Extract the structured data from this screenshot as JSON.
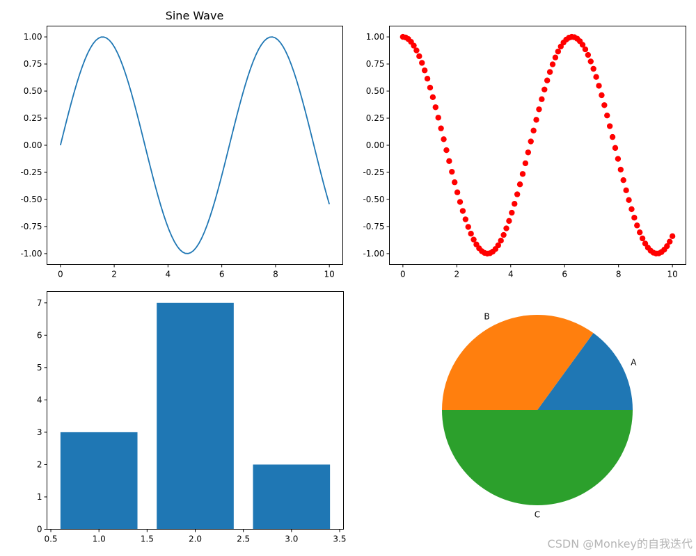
{
  "watermark": "CSDN @Monkey的自我迭代",
  "chart_data": [
    {
      "type": "line",
      "title": "Sine Wave",
      "function": "sin(x)",
      "x_range": [
        0,
        10
      ],
      "num_points": 100,
      "xlim": [
        -0.5,
        10.5
      ],
      "ylim": [
        -1.1,
        1.1
      ],
      "xticks": [
        "0",
        "2",
        "4",
        "6",
        "8",
        "10"
      ],
      "yticks": [
        "-1.00",
        "-0.75",
        "-0.50",
        "-0.25",
        "0.00",
        "0.25",
        "0.50",
        "0.75",
        "1.00"
      ],
      "color": "#1f77b4",
      "grid": false
    },
    {
      "type": "scatter",
      "title": "",
      "function": "cos(x)",
      "x_range": [
        0,
        10
      ],
      "num_points": 100,
      "xlim": [
        -0.5,
        10.5
      ],
      "ylim": [
        -1.1,
        1.1
      ],
      "xticks": [
        "0",
        "2",
        "4",
        "6",
        "8",
        "10"
      ],
      "yticks": [
        "-1.00",
        "-0.75",
        "-0.50",
        "-0.25",
        "0.00",
        "0.25",
        "0.50",
        "0.75",
        "1.00"
      ],
      "color": "#ff0000",
      "grid": false
    },
    {
      "type": "bar",
      "title": "",
      "x": [
        1,
        2,
        3
      ],
      "values": [
        3,
        7,
        2
      ],
      "bar_width": 0.8,
      "xlim": [
        0.46,
        3.54
      ],
      "ylim": [
        0,
        7.35
      ],
      "xticks": [
        "0.5",
        "1.0",
        "1.5",
        "2.0",
        "2.5",
        "3.0",
        "3.5"
      ],
      "yticks": [
        "0",
        "1",
        "2",
        "3",
        "4",
        "5",
        "6",
        "7"
      ],
      "color": "#1f77b4",
      "grid": false
    },
    {
      "type": "pie",
      "title": "",
      "labels": [
        "A",
        "B",
        "C"
      ],
      "values": [
        15,
        35,
        50
      ],
      "colors": [
        "#1f77b4",
        "#ff7f0e",
        "#2ca02c"
      ],
      "start_angle": 0
    }
  ]
}
